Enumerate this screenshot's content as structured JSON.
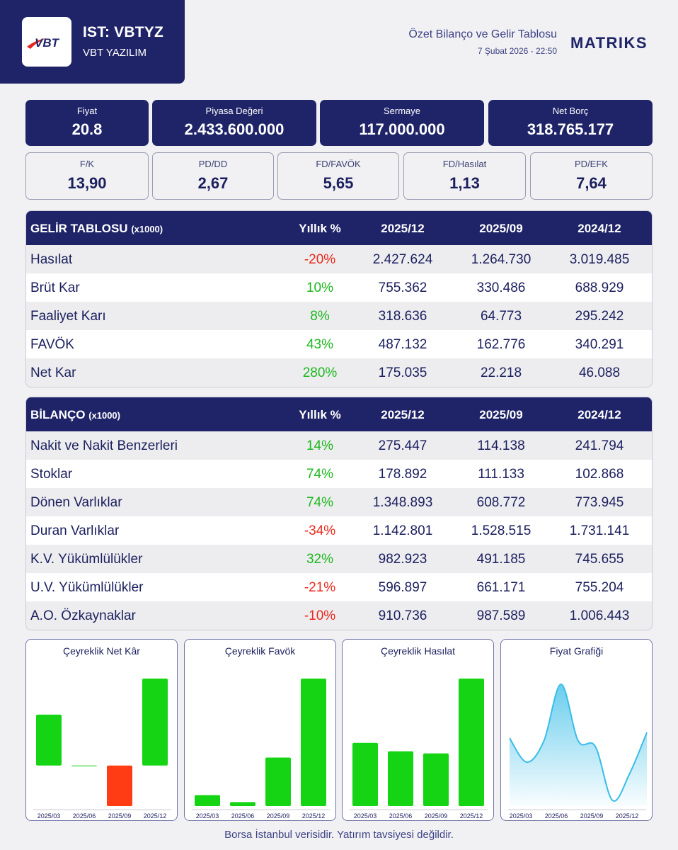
{
  "header": {
    "logo_text": "VBT",
    "ticker": "IST: VBTYZ",
    "company": "VBT YAZILIM",
    "report_title": "Özet Bilanço ve Gelir Tablosu",
    "report_date": "7 Şubat 2026 - 22:50",
    "brand": "MATRIKS"
  },
  "metrics_primary": [
    {
      "label": "Fiyat",
      "value": "20.8"
    },
    {
      "label": "Piyasa Değeri",
      "value": "2.433.600.000"
    },
    {
      "label": "Sermaye",
      "value": "117.000.000"
    },
    {
      "label": "Net Borç",
      "value": "318.765.177"
    }
  ],
  "metrics_ratios": [
    {
      "label": "F/K",
      "value": "13,90"
    },
    {
      "label": "PD/DD",
      "value": "2,67"
    },
    {
      "label": "FD/FAVÖK",
      "value": "5,65"
    },
    {
      "label": "FD/Hasılat",
      "value": "1,13"
    },
    {
      "label": "PD/EFK",
      "value": "7,64"
    }
  ],
  "income": {
    "title": "GELİR TABLOSU",
    "unit": "(x1000)",
    "columns": [
      "Yıllık %",
      "2025/12",
      "2025/09",
      "2024/12"
    ],
    "rows": [
      {
        "name": "Hasılat",
        "pct": "-20%",
        "v1": "2.427.624",
        "v2": "1.264.730",
        "v3": "3.019.485"
      },
      {
        "name": "Brüt Kar",
        "pct": "10%",
        "v1": "755.362",
        "v2": "330.486",
        "v3": "688.929"
      },
      {
        "name": "Faaliyet Karı",
        "pct": "8%",
        "v1": "318.636",
        "v2": "64.773",
        "v3": "295.242"
      },
      {
        "name": "FAVÖK",
        "pct": "43%",
        "v1": "487.132",
        "v2": "162.776",
        "v3": "340.291"
      },
      {
        "name": "Net Kar",
        "pct": "280%",
        "v1": "175.035",
        "v2": "22.218",
        "v3": "46.088"
      }
    ]
  },
  "balance": {
    "title": "BİLANÇO",
    "unit": "(x1000)",
    "columns": [
      "Yıllık %",
      "2025/12",
      "2025/09",
      "2024/12"
    ],
    "rows": [
      {
        "name": "Nakit ve Nakit Benzerleri",
        "pct": "14%",
        "v1": "275.447",
        "v2": "114.138",
        "v3": "241.794"
      },
      {
        "name": "Stoklar",
        "pct": "74%",
        "v1": "178.892",
        "v2": "111.133",
        "v3": "102.868"
      },
      {
        "name": "Dönen Varlıklar",
        "pct": "74%",
        "v1": "1.348.893",
        "v2": "608.772",
        "v3": "773.945"
      },
      {
        "name": "Duran Varlıklar",
        "pct": "-34%",
        "v1": "1.142.801",
        "v2": "1.528.515",
        "v3": "1.731.141"
      },
      {
        "name": "K.V. Yükümlülükler",
        "pct": "32%",
        "v1": "982.923",
        "v2": "491.185",
        "v3": "745.655"
      },
      {
        "name": "U.V. Yükümlülükler",
        "pct": "-21%",
        "v1": "596.897",
        "v2": "661.171",
        "v3": "755.204"
      },
      {
        "name": "A.O. Özkaynaklar",
        "pct": "-10%",
        "v1": "910.736",
        "v2": "987.589",
        "v3": "1.006.443"
      }
    ]
  },
  "colors": {
    "navy": "#1f2468",
    "positive": "#1db81d",
    "negative": "#ea2a1e",
    "bar_up": "#14d414",
    "bar_down": "#ff3c14",
    "line": "#38bde8"
  },
  "chart_data": [
    {
      "type": "bar",
      "title": "Çeyreklik Net Kâr",
      "categories": [
        "2025/03",
        "2025/06",
        "2025/09",
        "2025/12"
      ],
      "values": [
        79,
        0,
        -63,
        135
      ],
      "ylim": [
        -63,
        135
      ]
    },
    {
      "type": "bar",
      "title": "Çeyreklik Favök",
      "categories": [
        "2025/03",
        "2025/06",
        "2025/09",
        "2025/12"
      ],
      "values": [
        22,
        8,
        97,
        255
      ],
      "ylim": [
        0,
        255
      ]
    },
    {
      "type": "bar",
      "title": "Çeyreklik Hasılat",
      "categories": [
        "2025/03",
        "2025/06",
        "2025/09",
        "2025/12"
      ],
      "values": [
        600,
        520,
        500,
        1210
      ],
      "ylim": [
        0,
        1210
      ]
    },
    {
      "type": "area",
      "title": "Fiyat Grafiği",
      "categories": [
        "2025/03",
        "2025/06",
        "2025/09",
        "2025/12"
      ],
      "x": [
        0,
        1,
        2,
        3,
        4,
        5,
        6,
        7,
        8
      ],
      "values": [
        17.8,
        16.1,
        17.6,
        21.6,
        17.6,
        17.2,
        13.4,
        15.3,
        18.2
      ],
      "ylim": [
        13,
        22
      ]
    }
  ],
  "footer": "Borsa İstanbul verisidir. Yatırım tavsiyesi değildir."
}
